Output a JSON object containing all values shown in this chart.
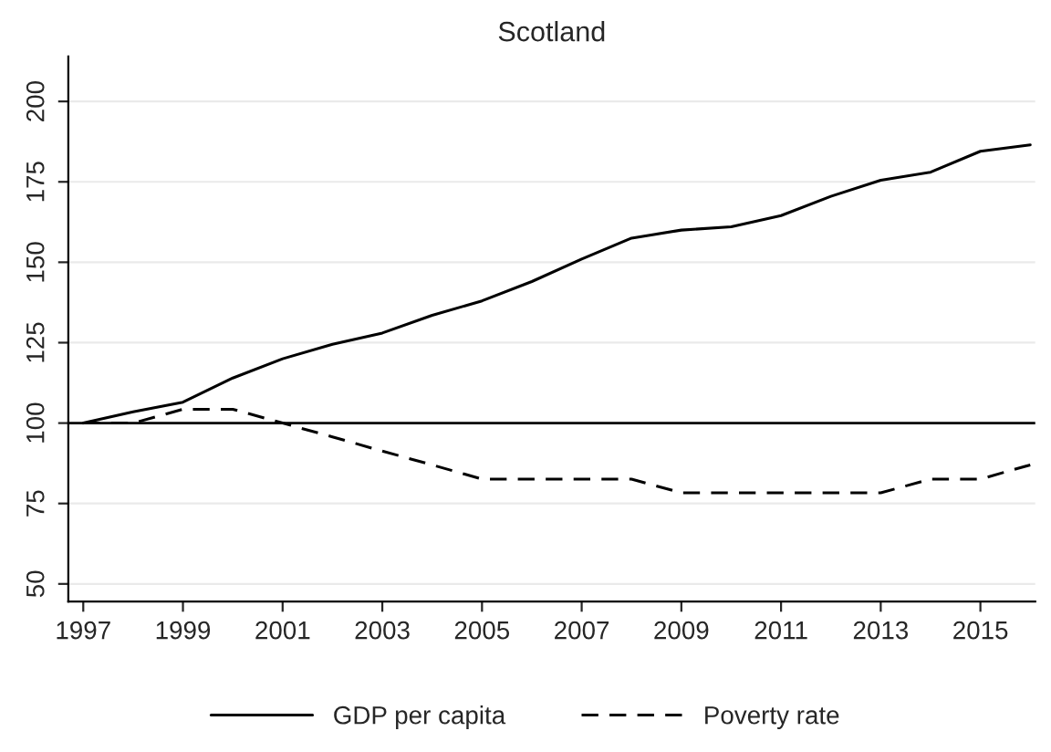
{
  "chart_data": {
    "type": "line",
    "title": "Scotland",
    "x": [
      1997,
      1998,
      1999,
      2000,
      2001,
      2002,
      2003,
      2004,
      2005,
      2006,
      2007,
      2008,
      2009,
      2010,
      2011,
      2012,
      2013,
      2014,
      2015,
      2016
    ],
    "series": [
      {
        "name": "GDP per capita",
        "color": "#000000",
        "line_style": "solid",
        "values": [
          100,
          103.5,
          106.5,
          114,
          120,
          124.5,
          128,
          133.5,
          138,
          144,
          151,
          157.5,
          160,
          161,
          164.5,
          170.5,
          175.5,
          178,
          184.5,
          186.5
        ]
      },
      {
        "name": "Poverty rate",
        "color": "#000000",
        "line_style": "dashed",
        "values": [
          100,
          100,
          104.3,
          104.3,
          100,
          95.7,
          91.3,
          87,
          82.6,
          82.6,
          82.6,
          82.6,
          78.3,
          78.3,
          78.3,
          78.3,
          78.3,
          82.6,
          82.6,
          87
        ]
      }
    ],
    "xlim": [
      1996.7,
      2016.1
    ],
    "xticks": [
      1997,
      1999,
      2001,
      2003,
      2005,
      2007,
      2009,
      2011,
      2013,
      2015
    ],
    "ylim": [
      44.5,
      214
    ],
    "yticks": [
      50,
      75,
      100,
      125,
      150,
      175,
      200
    ],
    "ref_lines": [
      {
        "axis": "y",
        "value": 100,
        "color": "#000000"
      }
    ],
    "grid": "y",
    "legend": "bottom"
  }
}
